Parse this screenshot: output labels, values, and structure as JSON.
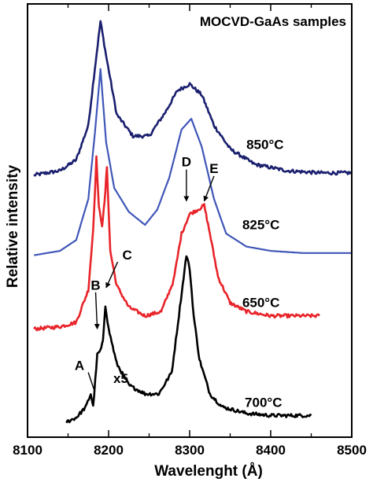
{
  "chart_data": {
    "type": "line",
    "title": "MOCVD-GaAs samples",
    "xlabel": "Wavelenght (Å)",
    "ylabel": "Relative intensity",
    "xlim": [
      8100,
      8500
    ],
    "x_ticks": [
      "8100",
      "8200",
      "8300",
      "8400",
      "8500"
    ],
    "grid": false,
    "legend": "none",
    "series": [
      {
        "name": "850°C",
        "color": "#1a1f6e",
        "points": [
          [
            8108,
            0.605
          ],
          [
            8140,
            0.615
          ],
          [
            8160,
            0.64
          ],
          [
            8175,
            0.72
          ],
          [
            8183,
            0.85
          ],
          [
            8190,
            0.96
          ],
          [
            8197,
            0.88
          ],
          [
            8210,
            0.745
          ],
          [
            8230,
            0.695
          ],
          [
            8250,
            0.695
          ],
          [
            8270,
            0.75
          ],
          [
            8285,
            0.8
          ],
          [
            8300,
            0.815
          ],
          [
            8315,
            0.79
          ],
          [
            8330,
            0.72
          ],
          [
            8350,
            0.665
          ],
          [
            8380,
            0.63
          ],
          [
            8420,
            0.615
          ],
          [
            8460,
            0.61
          ],
          [
            8500,
            0.61
          ]
        ]
      },
      {
        "name": "825°C",
        "color": "#3f56b8",
        "points": [
          [
            8108,
            0.42
          ],
          [
            8140,
            0.43
          ],
          [
            8160,
            0.455
          ],
          [
            8175,
            0.55
          ],
          [
            8183,
            0.7
          ],
          [
            8190,
            0.85
          ],
          [
            8197,
            0.68
          ],
          [
            8207,
            0.575
          ],
          [
            8225,
            0.52
          ],
          [
            8245,
            0.49
          ],
          [
            8260,
            0.525
          ],
          [
            8275,
            0.6
          ],
          [
            8290,
            0.71
          ],
          [
            8302,
            0.735
          ],
          [
            8315,
            0.67
          ],
          [
            8330,
            0.55
          ],
          [
            8345,
            0.47
          ],
          [
            8370,
            0.44
          ],
          [
            8400,
            0.43
          ],
          [
            8440,
            0.425
          ],
          [
            8500,
            0.425
          ]
        ]
      },
      {
        "name": "650°C",
        "color": "#e8242a",
        "points": [
          [
            8108,
            0.25
          ],
          [
            8140,
            0.255
          ],
          [
            8160,
            0.265
          ],
          [
            8175,
            0.34
          ],
          [
            8181,
            0.48
          ],
          [
            8185,
            0.645
          ],
          [
            8188,
            0.53
          ],
          [
            8192,
            0.49
          ],
          [
            8195,
            0.54
          ],
          [
            8198,
            0.625
          ],
          [
            8202,
            0.43
          ],
          [
            8210,
            0.35
          ],
          [
            8225,
            0.3
          ],
          [
            8245,
            0.28
          ],
          [
            8265,
            0.29
          ],
          [
            8280,
            0.36
          ],
          [
            8290,
            0.47
          ],
          [
            8300,
            0.515
          ],
          [
            8310,
            0.525
          ],
          [
            8318,
            0.535
          ],
          [
            8325,
            0.47
          ],
          [
            8335,
            0.37
          ],
          [
            8350,
            0.31
          ],
          [
            8370,
            0.29
          ],
          [
            8400,
            0.28
          ],
          [
            8440,
            0.28
          ],
          [
            8460,
            0.28
          ]
        ]
      },
      {
        "name": "700°C",
        "color": "#000000",
        "points": [
          [
            8148,
            0.035
          ],
          [
            8160,
            0.045
          ],
          [
            8172,
            0.07
          ],
          [
            8178,
            0.1
          ],
          [
            8181,
            0.07
          ],
          [
            8186,
            0.19
          ],
          [
            8190,
            0.2
          ],
          [
            8193,
            0.22
          ],
          [
            8196,
            0.305
          ],
          [
            8200,
            0.25
          ],
          [
            8210,
            0.17
          ],
          [
            8225,
            0.12
          ],
          [
            8245,
            0.1
          ],
          [
            8262,
            0.1
          ],
          [
            8278,
            0.15
          ],
          [
            8288,
            0.3
          ],
          [
            8296,
            0.42
          ],
          [
            8300,
            0.39
          ],
          [
            8305,
            0.28
          ],
          [
            8312,
            0.18
          ],
          [
            8325,
            0.1
          ],
          [
            8340,
            0.07
          ],
          [
            8370,
            0.055
          ],
          [
            8400,
            0.05
          ],
          [
            8430,
            0.05
          ],
          [
            8450,
            0.05
          ]
        ]
      }
    ],
    "curve_labels": [
      {
        "text": "850°C",
        "x": 8370,
        "y": 0.665
      },
      {
        "text": "825°C",
        "x": 8365,
        "y": 0.48
      },
      {
        "text": "650°C",
        "x": 8365,
        "y": 0.3
      },
      {
        "text": "700°C",
        "x": 8368,
        "y": 0.07
      }
    ],
    "annotations": [
      {
        "text": "A",
        "label_x": 8170,
        "label_y": 0.155,
        "target_x": 8182,
        "target_y": 0.11
      },
      {
        "text": "B",
        "label_x": 8184,
        "label_y": 0.34,
        "target_x": 8186,
        "target_y": 0.25
      },
      {
        "text": "C",
        "label_x": 8217,
        "label_y": 0.41,
        "target_x": 8197,
        "target_y": 0.345
      },
      {
        "text": "D",
        "label_x": 8296,
        "label_y": 0.625,
        "target_x": 8296,
        "target_y": 0.545
      },
      {
        "text": "E",
        "label_x": 8330,
        "label_y": 0.61,
        "target_x": 8318,
        "target_y": 0.545
      },
      {
        "text": "x5",
        "label_x": 8215,
        "label_y": 0.125
      }
    ]
  }
}
